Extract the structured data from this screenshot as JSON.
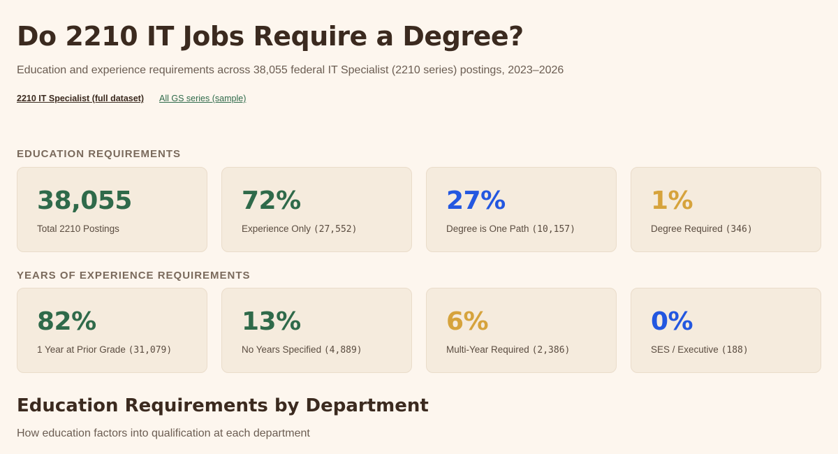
{
  "header": {
    "title": "Do 2210 IT Jobs Require a Degree?",
    "subtitle": "Education and experience requirements across 38,055 federal IT Specialist (2210 series) postings, 2023–2026"
  },
  "dataset_links": [
    {
      "label": "2210 IT Specialist (full dataset)",
      "active": true
    },
    {
      "label": "All GS series (sample)",
      "active": false
    }
  ],
  "education": {
    "heading": "EDUCATION REQUIREMENTS",
    "cards": [
      {
        "value": "38,055",
        "label": "Total 2210 Postings",
        "count": "",
        "color": "#2f6a4a"
      },
      {
        "value": "72%",
        "label": "Experience Only",
        "count": "(27,552)",
        "color": "#2f6a4a"
      },
      {
        "value": "27%",
        "label": "Degree is One Path",
        "count": "(10,157)",
        "color": "#2357e0"
      },
      {
        "value": "1%",
        "label": "Degree Required",
        "count": "(346)",
        "color": "#d6a33c"
      }
    ]
  },
  "experience": {
    "heading": "YEARS OF EXPERIENCE REQUIREMENTS",
    "cards": [
      {
        "value": "82%",
        "label": "1 Year at Prior Grade",
        "count": "(31,079)",
        "color": "#2f6a4a"
      },
      {
        "value": "13%",
        "label": "No Years Specified",
        "count": "(4,889)",
        "color": "#2f6a4a"
      },
      {
        "value": "6%",
        "label": "Multi-Year Required",
        "count": "(2,386)",
        "color": "#d6a33c"
      },
      {
        "value": "0%",
        "label": "SES / Executive",
        "count": "(188)",
        "color": "#2357e0"
      }
    ]
  },
  "department_section": {
    "title": "Education Requirements by Department",
    "subtitle": "How education factors into qualification at each department"
  }
}
